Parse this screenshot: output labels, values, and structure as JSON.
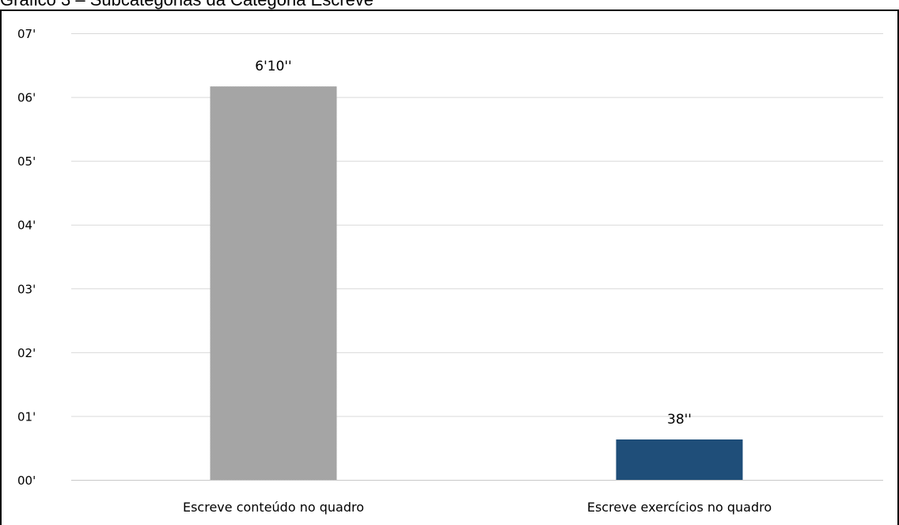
{
  "caption": "Gráfico 3 – Subcategorias da Categoria Escreve",
  "chart_data": {
    "type": "bar",
    "title": "Gráfico 3 – Subcategorias da Categoria Escreve",
    "xlabel": "",
    "ylabel": "",
    "unit": "minutes",
    "ylim": [
      0,
      7
    ],
    "grid": true,
    "y_ticks": [
      0,
      1,
      2,
      3,
      4,
      5,
      6,
      7
    ],
    "y_tick_labels": [
      "00'",
      "01'",
      "02'",
      "03'",
      "04'",
      "05'",
      "06'",
      "07'"
    ],
    "categories": [
      "Escreve conteúdo no quadro",
      "Escreve exercícios no quadro"
    ],
    "values": [
      6.1667,
      0.6333
    ],
    "data_labels": [
      "6'10''",
      "38''"
    ],
    "colors": [
      "#a6a6a6",
      "#1f4e79"
    ]
  }
}
